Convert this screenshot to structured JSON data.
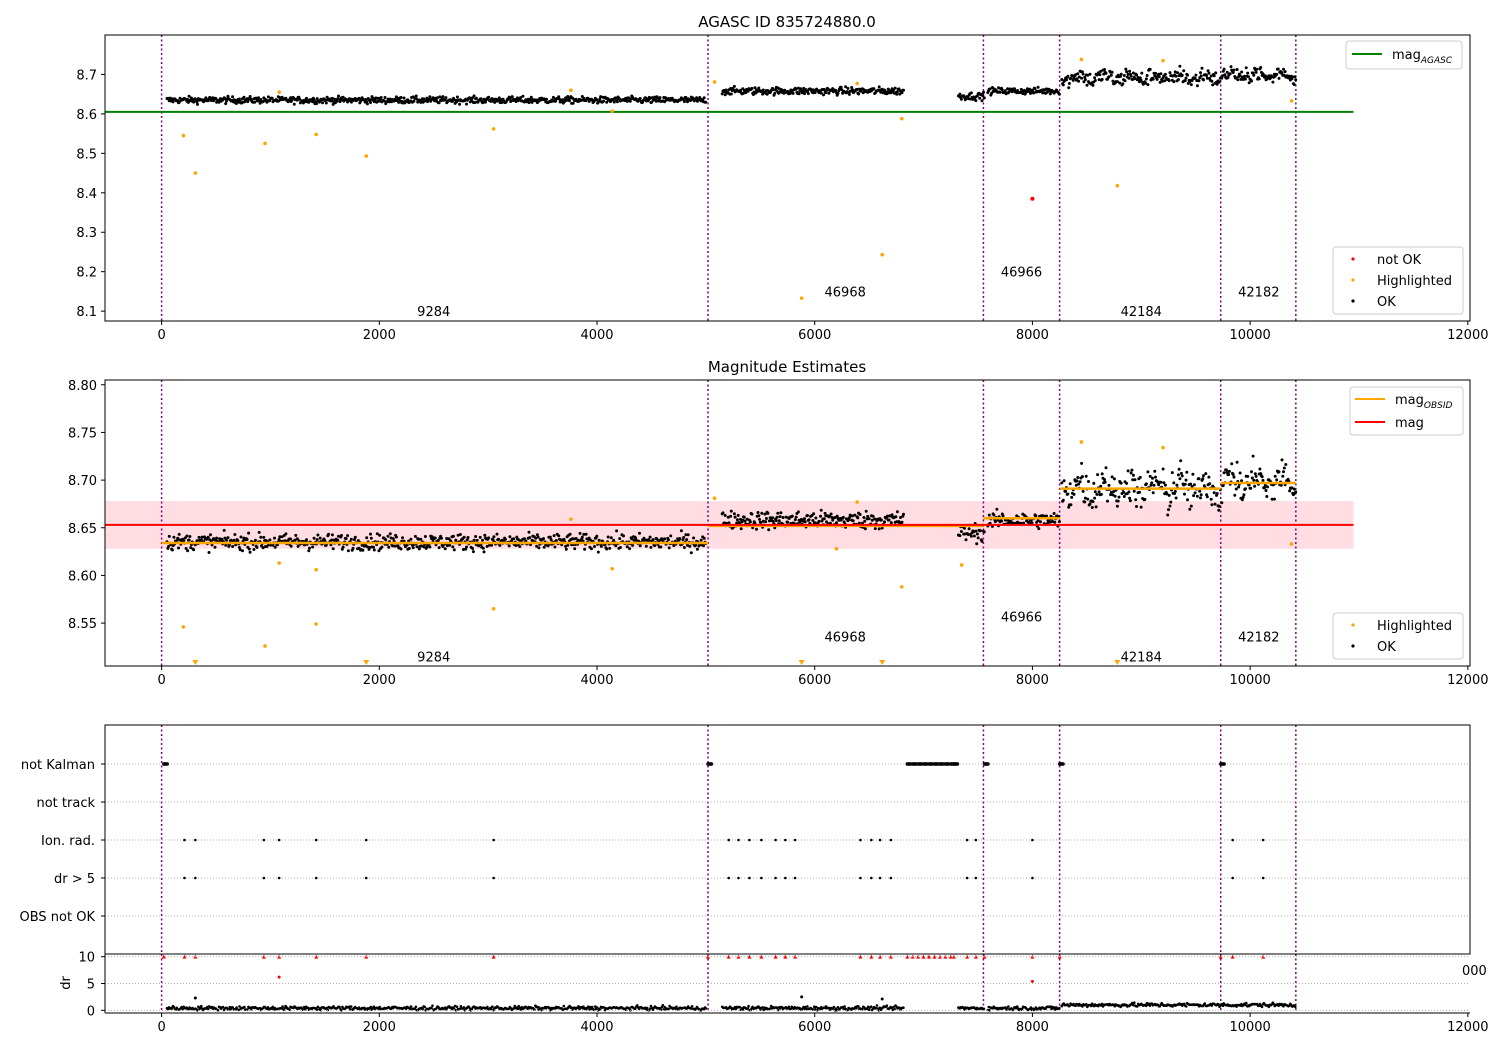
{
  "chart_data": [
    {
      "type": "scatter",
      "title": "AGASC ID 835724880.0",
      "xlim": [
        -520,
        12020
      ],
      "ylim": [
        8.075,
        8.8
      ],
      "xticks": [
        0,
        2000,
        4000,
        6000,
        8000,
        10000,
        12000
      ],
      "yticks": [
        8.1,
        8.2,
        8.3,
        8.4,
        8.5,
        8.6,
        8.7
      ],
      "xtick_labels": [
        "0",
        "2000",
        "4000",
        "6000",
        "8000",
        "10000",
        "12000"
      ],
      "ytick_labels": [
        "8.1",
        "8.2",
        "8.3",
        "8.4",
        "8.5",
        "8.6",
        "8.7"
      ],
      "obsid_boundaries": [
        0,
        5020,
        7550,
        8250,
        9730,
        10420
      ],
      "obsid_labels": [
        {
          "text": "9284",
          "x": 2500,
          "y": 8.1
        },
        {
          "text": "46968",
          "x": 6280,
          "y": 8.15
        },
        {
          "text": "46966",
          "x": 7900,
          "y": 8.2
        },
        {
          "text": "42184",
          "x": 9000,
          "y": 8.1
        },
        {
          "text": "42182",
          "x": 10080,
          "y": 8.15
        }
      ],
      "mag_agasc": 8.605,
      "mag_agasc_xrange": [
        -520,
        10950
      ],
      "ok_segments": [
        {
          "x": [
            50,
            5000
          ],
          "center": 8.635,
          "spread": 0.008
        },
        {
          "x": [
            5150,
            6820
          ],
          "center": 8.658,
          "spread": 0.009
        },
        {
          "x": [
            7320,
            7560
          ],
          "center": 8.645,
          "spread": 0.009
        },
        {
          "x": [
            7590,
            8250
          ],
          "center": 8.658,
          "spread": 0.008
        },
        {
          "x": [
            8270,
            9730
          ],
          "center": 8.692,
          "spread": 0.018
        },
        {
          "x": [
            9740,
            10420
          ],
          "center": 8.698,
          "spread": 0.016
        }
      ],
      "not_ok": [
        {
          "x": 8000,
          "y": 8.385
        }
      ],
      "highlighted": [
        {
          "x": 200,
          "y": 8.545
        },
        {
          "x": 310,
          "y": 8.45
        },
        {
          "x": 950,
          "y": 8.525
        },
        {
          "x": 1420,
          "y": 8.548
        },
        {
          "x": 1880,
          "y": 8.493
        },
        {
          "x": 3050,
          "y": 8.562
        },
        {
          "x": 5880,
          "y": 8.133
        },
        {
          "x": 6620,
          "y": 8.243
        },
        {
          "x": 6800,
          "y": 8.588
        },
        {
          "x": 8780,
          "y": 8.418
        },
        {
          "x": 10380,
          "y": 8.633
        },
        {
          "x": 5080,
          "y": 8.681
        },
        {
          "x": 6390,
          "y": 8.677
        },
        {
          "x": 8450,
          "y": 8.738
        },
        {
          "x": 9200,
          "y": 8.735
        },
        {
          "x": 3760,
          "y": 8.66
        },
        {
          "x": 1080,
          "y": 8.655
        },
        {
          "x": 4140,
          "y": 8.607
        }
      ],
      "legend": [
        "mag_AGASC",
        "not OK",
        "Highlighted",
        "OK"
      ]
    },
    {
      "type": "scatter",
      "title": "Magnitude Estimates",
      "xlim": [
        -520,
        12020
      ],
      "ylim": [
        8.505,
        8.805
      ],
      "xticks": [
        0,
        2000,
        4000,
        6000,
        8000,
        10000,
        12000
      ],
      "yticks": [
        8.55,
        8.6,
        8.65,
        8.7,
        8.75,
        8.8
      ],
      "xtick_labels": [
        "0",
        "2000",
        "4000",
        "6000",
        "8000",
        "10000",
        "12000"
      ],
      "ytick_labels": [
        "8.55",
        "8.60",
        "8.65",
        "8.70",
        "8.75",
        "8.80"
      ],
      "obsid_labels": [
        {
          "text": "9284",
          "x": 2500,
          "y": 8.515
        },
        {
          "text": "46968",
          "x": 6280,
          "y": 8.536
        },
        {
          "text": "46966",
          "x": 7900,
          "y": 8.557
        },
        {
          "text": "42184",
          "x": 9000,
          "y": 8.515
        },
        {
          "text": "42182",
          "x": 10080,
          "y": 8.536
        }
      ],
      "mag": 8.653,
      "mag_band": [
        8.628,
        8.678
      ],
      "mag_xrange": [
        -520,
        10950
      ],
      "mag_obsid": [
        {
          "x": [
            0,
            5020
          ],
          "y": 8.634
        },
        {
          "x": [
            5020,
            7550
          ],
          "y": 8.652
        },
        {
          "x": [
            7550,
            8250
          ],
          "y": 8.66
        },
        {
          "x": [
            8250,
            9730
          ],
          "y": 8.691
        },
        {
          "x": [
            9730,
            10420
          ],
          "y": 8.697
        }
      ],
      "highlighted": [
        {
          "x": 200,
          "y": 8.546
        },
        {
          "x": 950,
          "y": 8.526
        },
        {
          "x": 1420,
          "y": 8.549
        },
        {
          "x": 3050,
          "y": 8.565
        },
        {
          "x": 6800,
          "y": 8.588
        },
        {
          "x": 7350,
          "y": 8.611
        },
        {
          "x": 10380,
          "y": 8.633
        },
        {
          "x": 5080,
          "y": 8.681
        },
        {
          "x": 6390,
          "y": 8.677
        },
        {
          "x": 8450,
          "y": 8.74
        },
        {
          "x": 9200,
          "y": 8.734
        },
        {
          "x": 3760,
          "y": 8.659
        },
        {
          "x": 1080,
          "y": 8.613
        },
        {
          "x": 4140,
          "y": 8.607
        },
        {
          "x": 1420,
          "y": 8.606
        },
        {
          "x": 6200,
          "y": 8.628
        }
      ],
      "offscale_low": [
        310,
        1880,
        5880,
        6620,
        8780
      ],
      "legend": [
        "mag_OBSID",
        "mag",
        "Highlighted",
        "OK"
      ]
    },
    {
      "type": "scatter",
      "title": "",
      "flag_rows": [
        "not Kalman",
        "not track",
        "Ion. rad.",
        "dr > 5",
        "OBS not OK"
      ],
      "not_kalman_x": [
        20,
        5020,
        6850,
        6900,
        6950,
        7000,
        7050,
        7100,
        7150,
        7200,
        7250,
        7280,
        7560,
        8250,
        9730
      ],
      "ion_rad_x": [
        210,
        310,
        940,
        1080,
        1420,
        1880,
        3050,
        5210,
        5300,
        5400,
        5510,
        5640,
        5730,
        5820,
        6420,
        6520,
        6600,
        6700,
        7400,
        7480,
        8000,
        9840,
        10120
      ],
      "xlim": [
        -520,
        12020
      ],
      "xticks": [
        0,
        2000,
        4000,
        6000,
        8000,
        10000,
        12000
      ],
      "xtick_labels": [
        "0",
        "2000",
        "4000",
        "6000",
        "8000",
        "10000",
        "12000"
      ],
      "dr_ylim": [
        -0.5,
        10.5
      ],
      "dr_yticks": [
        0,
        5,
        10
      ],
      "dr_ytick_labels": [
        "0",
        "5",
        "10"
      ],
      "dr_ylabel": "dr",
      "dr_outliers": [
        {
          "x": 1080,
          "y": 6.2
        },
        {
          "x": 8000,
          "y": 5.4
        },
        {
          "x": 310,
          "y": 2.3
        },
        {
          "x": 5880,
          "y": 2.5
        },
        {
          "x": 6620,
          "y": 2.1
        }
      ],
      "clipped_label": "000"
    }
  ],
  "legend_labels": {
    "mag_agasc": "mag",
    "mag_agasc_sub": "AGASC",
    "mag_obsid": "mag",
    "mag_obsid_sub": "OBSID",
    "mag": "mag",
    "not_ok": "not OK",
    "highlighted": "Highlighted",
    "ok": "OK"
  },
  "colors": {
    "ok": "#000000",
    "highlighted": "#ffa500",
    "not_ok": "#ff0000",
    "agasc_line": "#008000",
    "mag_line": "#ff0000",
    "mag_band": "#ffdde2",
    "obsid_line": "#ffa500",
    "boundary": "#800080",
    "grid": "#b0b0b0"
  }
}
